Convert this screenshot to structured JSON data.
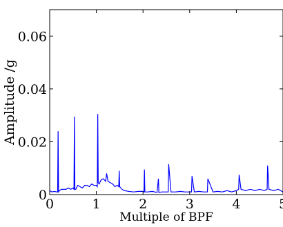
{
  "chart_data": {
    "type": "line",
    "title": "",
    "xlabel": "Multiple of BPF",
    "ylabel": "Amplitude /g",
    "xlim": [
      0,
      5
    ],
    "ylim": [
      0,
      0.07
    ],
    "xticks": [
      0,
      1,
      2,
      3,
      4,
      5
    ],
    "xtick_labels": [
      "0",
      "1",
      "2",
      "3",
      "4",
      "5"
    ],
    "yticks": [
      0,
      0.02,
      0.04,
      0.06
    ],
    "ytick_labels": [
      "0",
      "0.02",
      "0.04",
      "0.06"
    ],
    "grid": false,
    "line_color": "#0000ff",
    "series": [
      {
        "x": [
          0.0,
          0.05,
          0.1,
          0.15,
          0.17,
          0.18,
          0.19,
          0.21,
          0.25,
          0.3,
          0.35,
          0.4,
          0.45,
          0.5,
          0.52,
          0.53,
          0.54,
          0.56,
          0.6,
          0.65,
          0.7,
          0.75,
          0.8,
          0.85,
          0.9,
          0.95,
          1.0,
          1.02,
          1.03,
          1.04,
          1.06,
          1.1,
          1.15,
          1.2,
          1.22,
          1.25,
          1.3,
          1.35,
          1.4,
          1.45,
          1.48,
          1.49,
          1.5,
          1.55,
          1.6,
          1.7,
          1.8,
          1.9,
          2.0,
          2.02,
          2.03,
          2.04,
          2.1,
          2.2,
          2.3,
          2.33,
          2.34,
          2.4,
          2.5,
          2.54,
          2.55,
          2.6,
          2.7,
          2.8,
          2.9,
          3.0,
          3.04,
          3.05,
          3.1,
          3.2,
          3.3,
          3.38,
          3.39,
          3.5,
          3.6,
          3.7,
          3.8,
          3.9,
          4.0,
          4.05,
          4.06,
          4.1,
          4.2,
          4.3,
          4.4,
          4.5,
          4.6,
          4.66,
          4.67,
          4.7,
          4.8,
          4.9,
          5.0
        ],
        "y": [
          0.0015,
          0.001,
          0.0012,
          0.001,
          0.001,
          0.024,
          0.001,
          0.0015,
          0.002,
          0.002,
          0.002,
          0.0025,
          0.002,
          0.0025,
          0.002,
          0.0295,
          0.002,
          0.002,
          0.0035,
          0.003,
          0.0025,
          0.0035,
          0.0035,
          0.003,
          0.004,
          0.0035,
          0.0035,
          0.003,
          0.0305,
          0.0045,
          0.004,
          0.0055,
          0.006,
          0.005,
          0.008,
          0.005,
          0.0045,
          0.004,
          0.003,
          0.0035,
          0.003,
          0.009,
          0.003,
          0.002,
          0.0015,
          0.0012,
          0.001,
          0.0012,
          0.0012,
          0.001,
          0.0095,
          0.001,
          0.001,
          0.0012,
          0.0008,
          0.006,
          0.0008,
          0.001,
          0.001,
          0.001,
          0.0115,
          0.001,
          0.001,
          0.0012,
          0.001,
          0.001,
          0.001,
          0.007,
          0.001,
          0.0012,
          0.001,
          0.001,
          0.006,
          0.001,
          0.0012,
          0.001,
          0.0015,
          0.001,
          0.0015,
          0.002,
          0.0075,
          0.002,
          0.0015,
          0.002,
          0.0015,
          0.002,
          0.0015,
          0.002,
          0.011,
          0.002,
          0.0015,
          0.002,
          0.001
        ]
      }
    ]
  }
}
